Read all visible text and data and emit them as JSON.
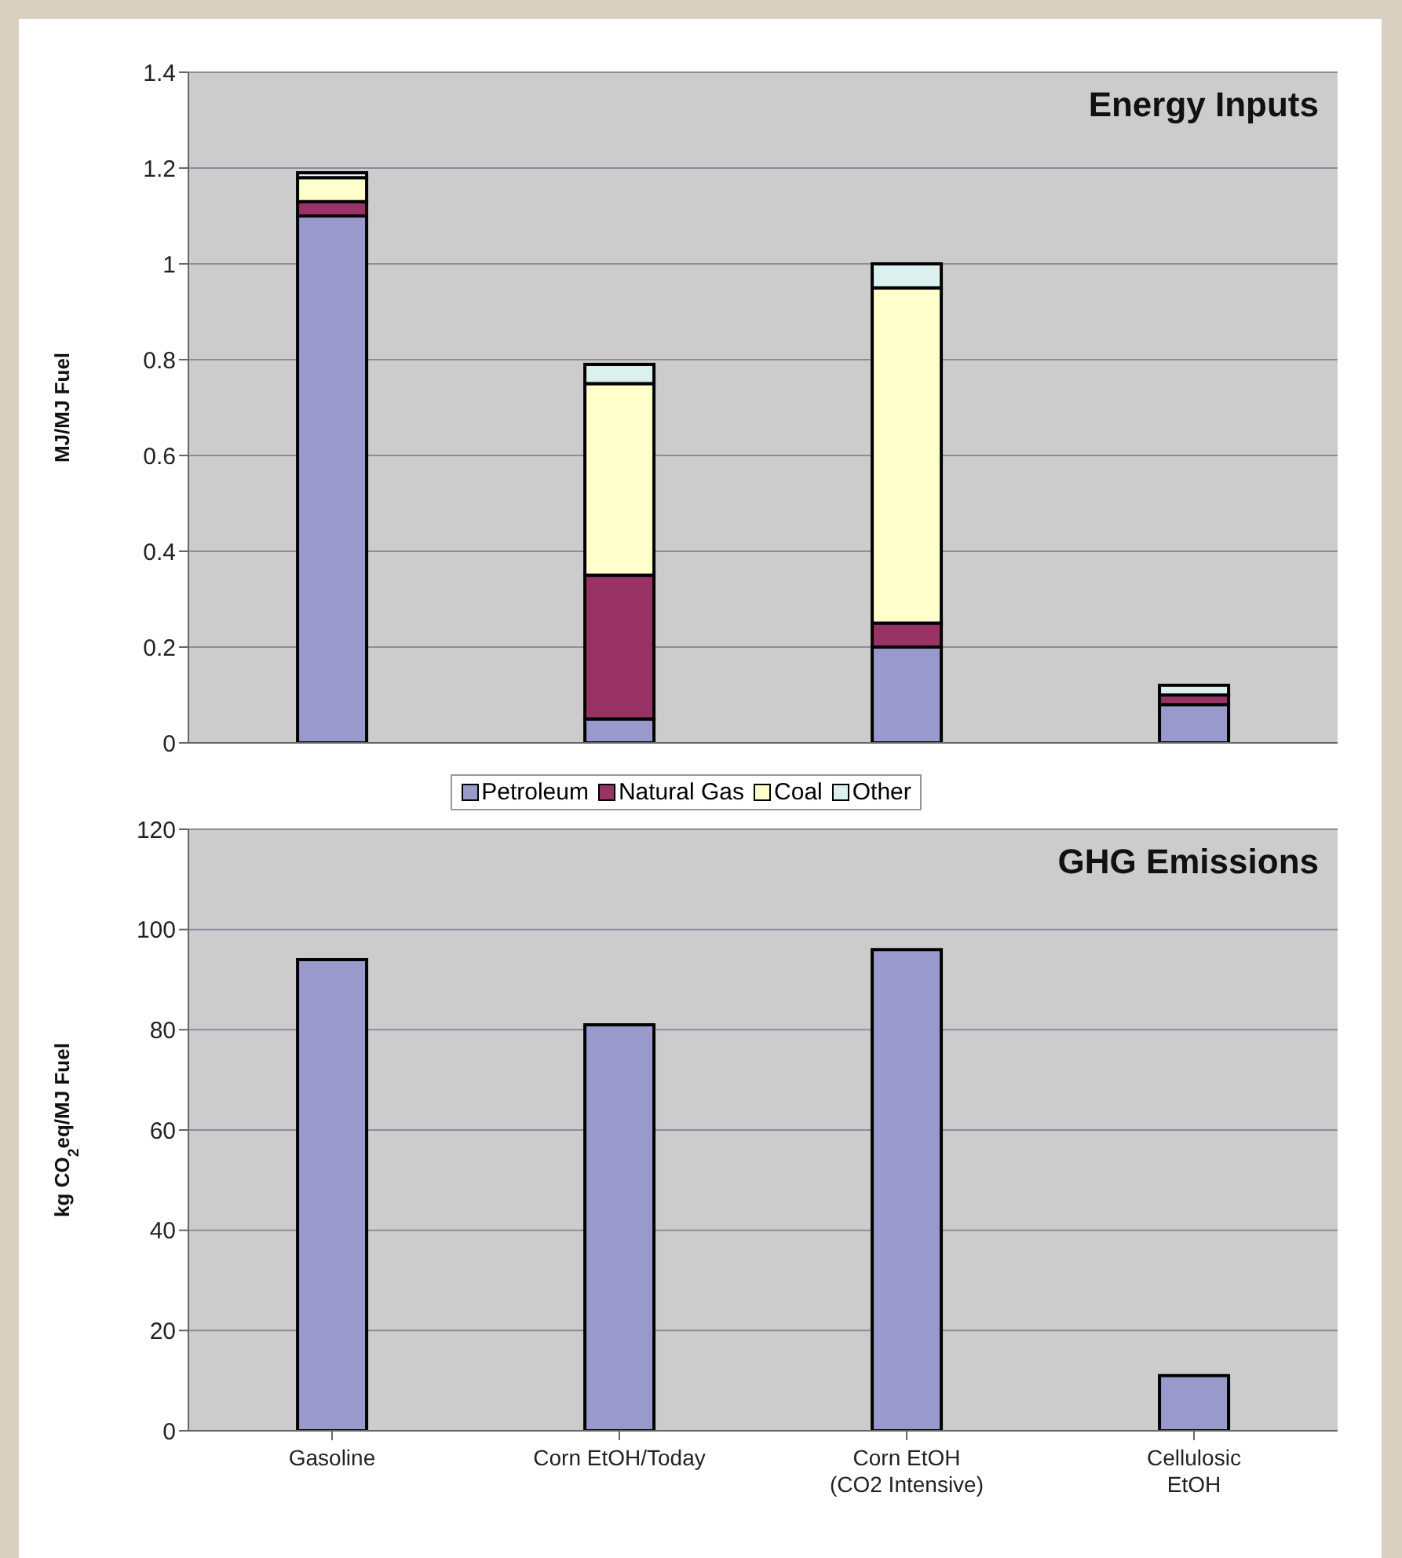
{
  "chart_data": [
    {
      "type": "bar",
      "title": "Energy Inputs",
      "ylabel": "MJ/MJ Fuel",
      "stacked": true,
      "categories": [
        null,
        null,
        null,
        null
      ],
      "series": [
        {
          "name": "Petroleum",
          "color": "#9999cc",
          "values": [
            1.1,
            0.05,
            0.2,
            0.08
          ]
        },
        {
          "name": "Natural Gas",
          "color": "#993366",
          "values": [
            0.03,
            0.3,
            0.05,
            0.02
          ]
        },
        {
          "name": "Coal",
          "color": "#ffffcc",
          "values": [
            0.05,
            0.4,
            0.7,
            0
          ]
        },
        {
          "name": "Other",
          "color": "#ddf0f0",
          "values": [
            0.01,
            0.04,
            0.05,
            0.02
          ]
        }
      ],
      "ylim": [
        0,
        1.4
      ],
      "yticks": [
        0,
        {
          "value": 0.2,
          "label": "0.2"
        },
        {
          "value": 0.4,
          "label": "0.4"
        },
        {
          "value": 0.6,
          "label": "0.6"
        },
        {
          "value": 0.8,
          "label": "0.8"
        },
        1,
        {
          "value": 1.2,
          "label": "1.2"
        },
        {
          "value": 1.4,
          "label": "1.4"
        }
      ],
      "grid": "y",
      "legend": "bottom",
      "tick_labels": "y"
    },
    {
      "type": "bar",
      "title": "GHG Emissions",
      "ylabel": "kg CO$_{2}$eq/MJ Fuel",
      "categories": [
        "Gasoline",
        "Corn EtOH/Today",
        "Corn EtOH\n(CO2 Intensive)",
        "Cellulosic\nEtOH"
      ],
      "series": [
        {
          "color": "#9999cc",
          "values": [
            94,
            81,
            96,
            11
          ]
        }
      ],
      "ylim": [
        0,
        120
      ],
      "yticks": [
        0,
        20,
        40,
        60,
        80,
        100,
        120
      ],
      "grid": "y"
    }
  ]
}
